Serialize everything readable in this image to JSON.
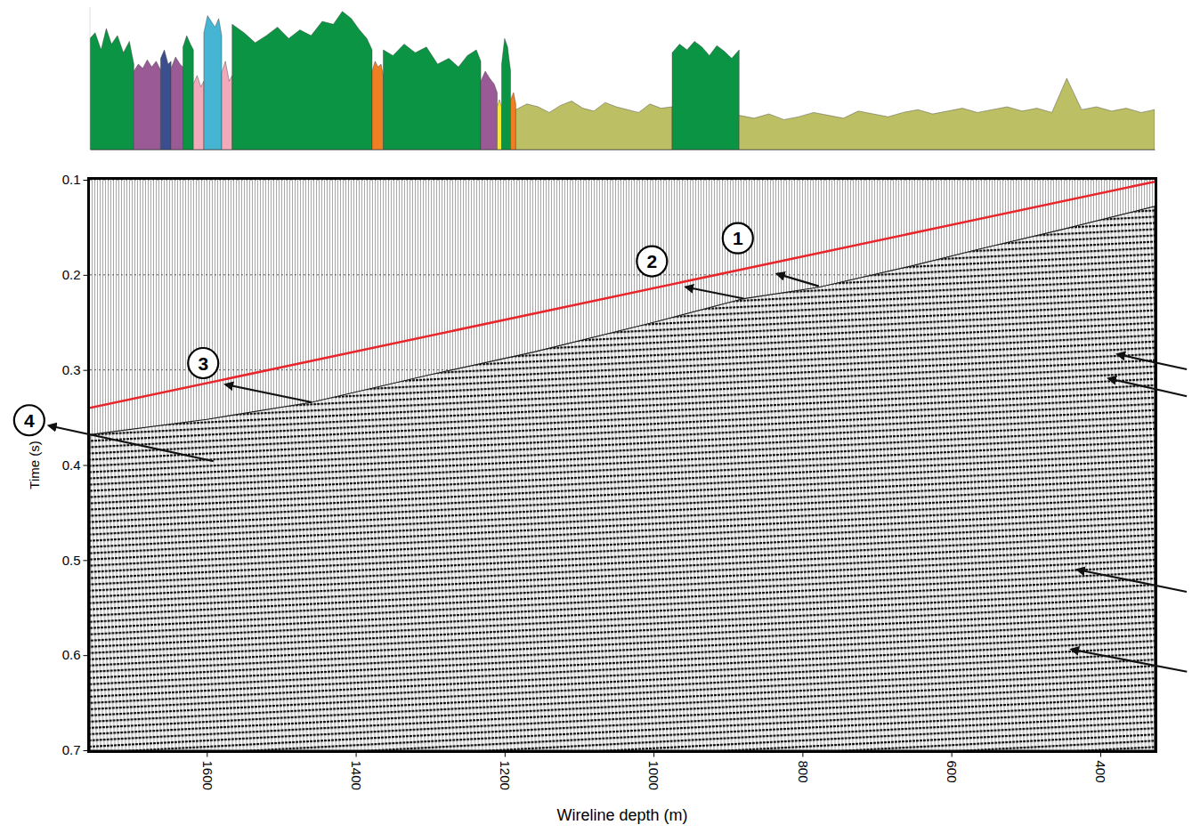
{
  "chart_data": [
    {
      "type": "line",
      "x_label": "Wireline depth (m)",
      "y_label": "Time (s)",
      "xlim": [
        1757,
        327
      ],
      "ylim": [
        0.7,
        0.1
      ],
      "xticks": [
        1600,
        1400,
        1200,
        1000,
        800,
        600,
        400
      ],
      "yticks": [
        0.1,
        0.2,
        0.3,
        0.4,
        0.5,
        0.6,
        0.7
      ],
      "grid": true,
      "series": [
        {
          "type": "area",
          "color": "#1a1a1a",
          "x": [
            1757,
            1600,
            1459,
            1300,
            1160,
            1000,
            879,
            778,
            650,
            563,
            450,
            327
          ],
          "values": [
            0.368,
            0.352,
            0.334,
            0.305,
            0.281,
            0.25,
            0.225,
            0.213,
            0.19,
            0.173,
            0.152,
            0.128
          ]
        },
        {
          "type": "line",
          "color": "#e8262b",
          "line_style": "solid",
          "x": [
            1757,
            327
          ],
          "values": [
            0.34,
            0.102
          ]
        }
      ],
      "annotations": [
        {
          "text": "1",
          "x": 778,
          "y": 0.212
        },
        {
          "text": "2",
          "x": 879,
          "y": 0.225
        },
        {
          "text": "3",
          "x": 1459,
          "y": 0.334
        },
        {
          "text": "4",
          "x": 1591,
          "y": 0.396
        }
      ],
      "arrows": [
        {
          "x": 377,
          "y": 0.2835
        },
        {
          "x": 389,
          "y": 0.309
        },
        {
          "x": 431,
          "y": 0.51
        },
        {
          "x": 439,
          "y": 0.594
        }
      ]
    },
    {
      "type": "area",
      "xlim": [
        1757,
        327
      ],
      "ylim": [
        0,
        100
      ],
      "tick_labels": false,
      "series": [
        {
          "color": "#0b9444",
          "x": [
            1757,
            1750,
            1742,
            1735,
            1728,
            1720,
            1712,
            1704,
            1698
          ],
          "values": [
            78,
            82,
            70,
            85,
            74,
            80,
            68,
            76,
            60
          ]
        },
        {
          "color": "#9a5a96",
          "x": [
            1698,
            1692,
            1686,
            1680,
            1674,
            1668,
            1662
          ],
          "values": [
            55,
            60,
            57,
            63,
            58,
            62,
            56
          ]
        },
        {
          "color": "#3b4f8f",
          "x": [
            1662,
            1657,
            1652,
            1648
          ],
          "values": [
            64,
            70,
            60,
            62
          ]
        },
        {
          "color": "#9a5a96",
          "x": [
            1648,
            1642,
            1636,
            1632
          ],
          "values": [
            57,
            65,
            60,
            58
          ]
        },
        {
          "color": "#0b9444",
          "x": [
            1632,
            1627,
            1622,
            1618
          ],
          "values": [
            72,
            80,
            74,
            70
          ]
        },
        {
          "color": "#f2a9b9",
          "x": [
            1618,
            1613,
            1608,
            1604
          ],
          "values": [
            46,
            52,
            44,
            48
          ]
        },
        {
          "color": "#45b5d3",
          "x": [
            1604,
            1599,
            1594,
            1589,
            1584,
            1580
          ],
          "values": [
            82,
            94,
            90,
            86,
            92,
            80
          ]
        },
        {
          "color": "#f2a9b9",
          "x": [
            1580,
            1575,
            1570,
            1566
          ],
          "values": [
            54,
            62,
            48,
            52
          ]
        },
        {
          "color": "#0b9444",
          "x": [
            1566,
            1550,
            1535,
            1520,
            1505,
            1490,
            1475,
            1460,
            1445,
            1430,
            1418,
            1406,
            1395,
            1385,
            1378
          ],
          "values": [
            88,
            82,
            75,
            80,
            86,
            78,
            84,
            80,
            90,
            88,
            97,
            92,
            84,
            78,
            70
          ]
        },
        {
          "color": "#f07f24",
          "x": [
            1378,
            1374,
            1370,
            1366,
            1363
          ],
          "values": [
            55,
            62,
            58,
            60,
            52
          ]
        },
        {
          "color": "#0b9444",
          "x": [
            1363,
            1350,
            1335,
            1320,
            1305,
            1290,
            1275,
            1262,
            1250,
            1238,
            1232
          ],
          "values": [
            70,
            66,
            74,
            68,
            72,
            60,
            64,
            58,
            66,
            70,
            62
          ]
        },
        {
          "color": "#9a5a96",
          "x": [
            1232,
            1226,
            1220,
            1214,
            1210
          ],
          "values": [
            48,
            55,
            50,
            46,
            40
          ]
        },
        {
          "color": "#f2ea2a",
          "x": [
            1210,
            1207,
            1204
          ],
          "values": [
            30,
            35,
            30
          ]
        },
        {
          "color": "#0b9444",
          "x": [
            1204,
            1200,
            1196,
            1192
          ],
          "values": [
            60,
            78,
            72,
            55
          ]
        },
        {
          "color": "#f07f24",
          "x": [
            1192,
            1188,
            1185
          ],
          "values": [
            35,
            40,
            32
          ]
        },
        {
          "color": "#bcbf63",
          "x": [
            1185,
            1170,
            1155,
            1140,
            1125,
            1110,
            1095,
            1080,
            1065,
            1050,
            1035,
            1020,
            1005,
            990,
            975
          ],
          "values": [
            28,
            32,
            30,
            26,
            31,
            34,
            29,
            27,
            33,
            30,
            28,
            26,
            32,
            29,
            30
          ]
        },
        {
          "color": "#0b9444",
          "x": [
            975,
            965,
            955,
            945,
            935,
            925,
            915,
            905,
            895,
            885
          ],
          "values": [
            68,
            74,
            70,
            76,
            72,
            66,
            73,
            69,
            64,
            70
          ]
        },
        {
          "color": "#bcbf63",
          "x": [
            885,
            865,
            845,
            825,
            805,
            785,
            765,
            745,
            725,
            705,
            685,
            665,
            645,
            625,
            605,
            585,
            565,
            545,
            525,
            505,
            485,
            465,
            445,
            425,
            405,
            385,
            365,
            345,
            327
          ],
          "values": [
            24,
            22,
            25,
            21,
            23,
            26,
            24,
            22,
            27,
            25,
            23,
            26,
            28,
            25,
            27,
            29,
            26,
            28,
            30,
            27,
            29,
            26,
            50,
            28,
            30,
            27,
            29,
            26,
            28
          ]
        }
      ]
    }
  ]
}
